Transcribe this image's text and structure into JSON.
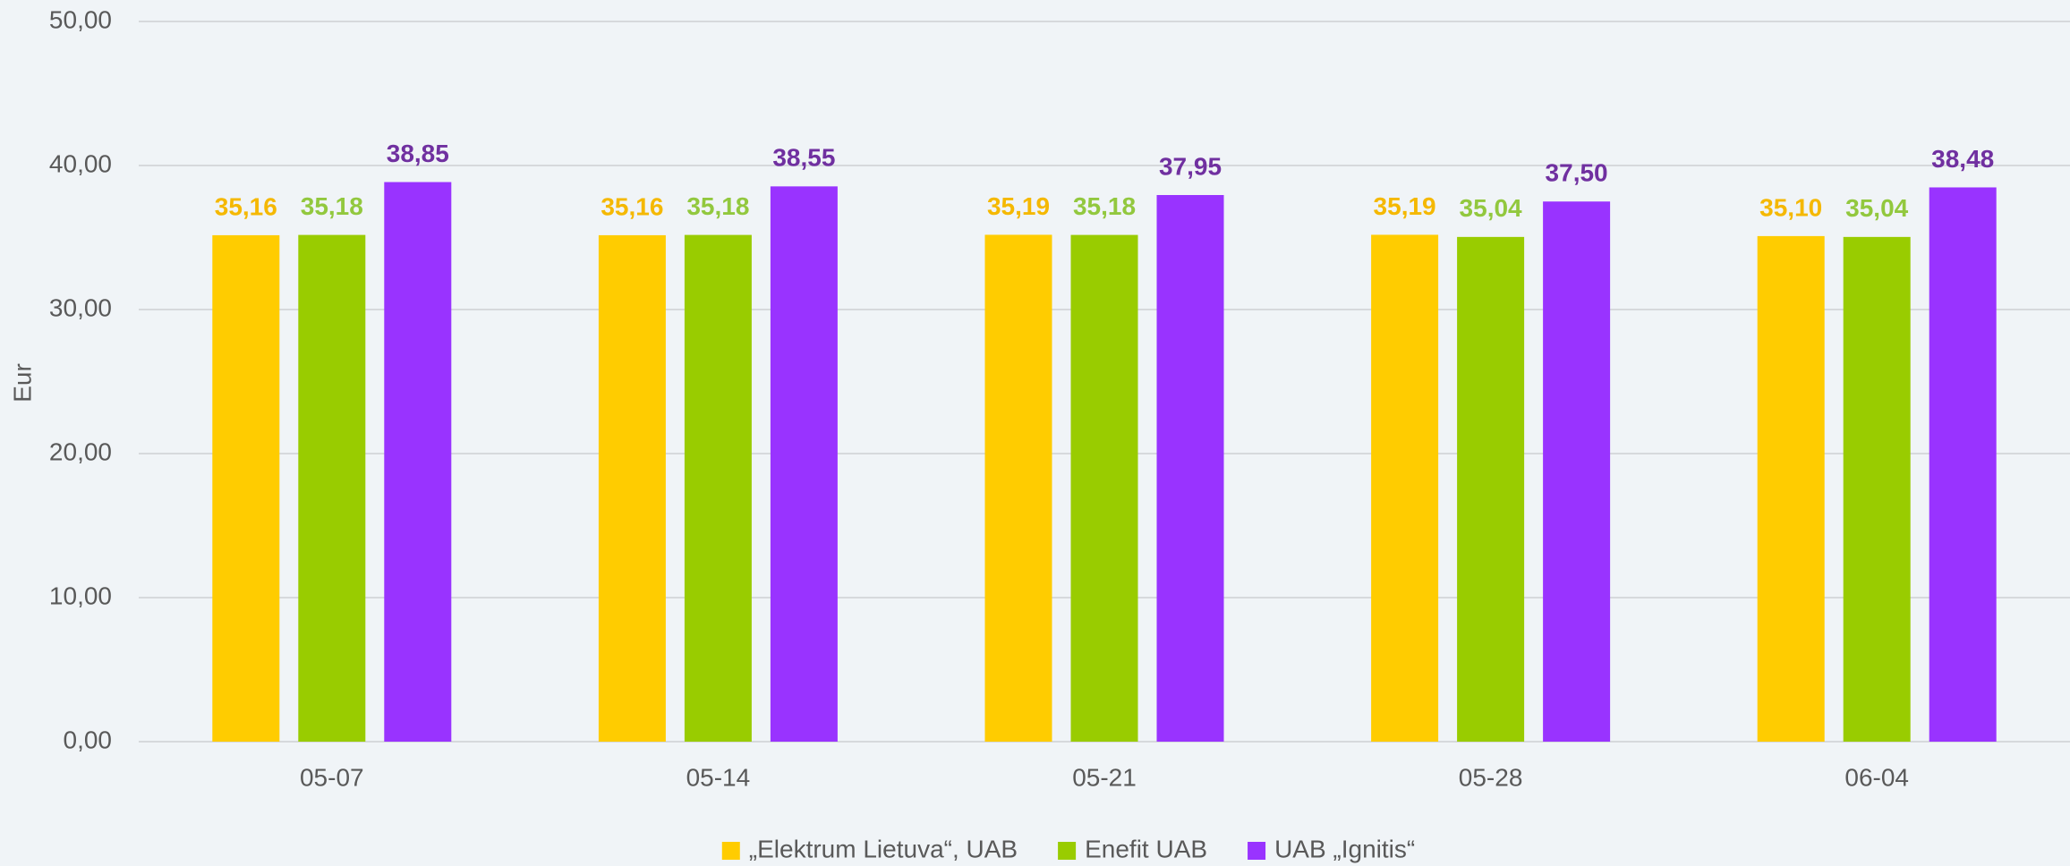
{
  "chart_data": {
    "type": "bar",
    "y_label": "Eur",
    "categories": [
      "05-07",
      "05-14",
      "05-21",
      "05-28",
      "06-04"
    ],
    "series": [
      {
        "name": "„Elektrum Lietuva“, UAB",
        "color": "#ffcc00",
        "label_color": "#f5b800",
        "values": [
          35.16,
          35.16,
          35.19,
          35.19,
          35.1
        ],
        "value_labels": [
          "35,16",
          "35,16",
          "35,19",
          "35,19",
          "35,10"
        ]
      },
      {
        "name": "Enefit UAB",
        "color": "#99cc00",
        "label_color": "#92c83e",
        "values": [
          35.18,
          35.18,
          35.18,
          35.04,
          35.04
        ],
        "value_labels": [
          "35,18",
          "35,18",
          "35,18",
          "35,04",
          "35,04"
        ]
      },
      {
        "name": "UAB „Ignitis“",
        "color": "#9933ff",
        "label_color": "#7030a0",
        "values": [
          38.85,
          38.55,
          37.95,
          37.5,
          38.48
        ],
        "value_labels": [
          "38,85",
          "38,55",
          "37,95",
          "37,50",
          "38,48"
        ]
      }
    ],
    "ylim": [
      0,
      50
    ],
    "yticks": [
      {
        "value": 0,
        "label": "0,00"
      },
      {
        "value": 10,
        "label": "10,00"
      },
      {
        "value": 20,
        "label": "20,00"
      },
      {
        "value": 30,
        "label": "30,00"
      },
      {
        "value": 40,
        "label": "40,00"
      },
      {
        "value": 50,
        "label": "50,00"
      }
    ],
    "grid": true,
    "legend": "bottom"
  }
}
